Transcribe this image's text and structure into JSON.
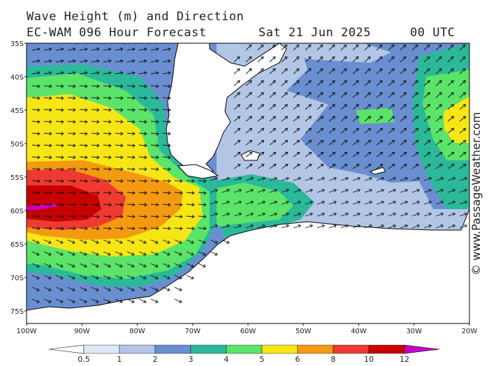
{
  "header": {
    "line1": "Wave Height (m) and Direction",
    "line2_left": "EC-WAM 096 Hour Forecast",
    "line2_date": "Sat 21 Jun 2025",
    "line2_time": "00 UTC"
  },
  "credit": "© www.PassageWeather.com",
  "latitude_labels": [
    "35S",
    "40S",
    "45S",
    "50S",
    "55S",
    "60S",
    "65S",
    "70S",
    "75S"
  ],
  "longitude_labels": [
    "100W",
    "90W",
    "80W",
    "70W",
    "60W",
    "50W",
    "40W",
    "30W",
    "20W"
  ],
  "colorbar": {
    "labels": [
      "0.5",
      "1",
      "2",
      "3",
      "4",
      "5",
      "6",
      "8",
      "10",
      "12"
    ],
    "colors": [
      "#dfe6f4",
      "#b3c6e6",
      "#6a8fd0",
      "#2bb99a",
      "#5ce36a",
      "#f6e616",
      "#f49a11",
      "#ee3a32",
      "#c70000",
      "#c500c5"
    ]
  },
  "colors": {
    "land": "#ffffff",
    "coast": "#000000",
    "arrow": "#111111"
  }
}
